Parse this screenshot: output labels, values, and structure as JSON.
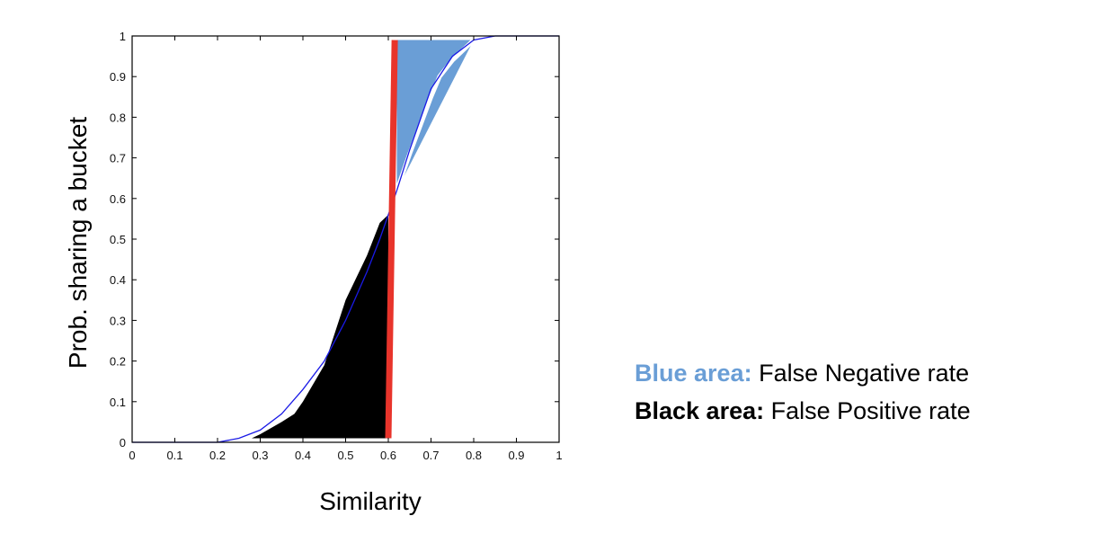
{
  "chart_data": {
    "type": "line",
    "title": "",
    "xlabel": "Similarity",
    "ylabel": "Prob. sharing a bucket",
    "xlim": [
      0,
      1
    ],
    "ylim": [
      0,
      1
    ],
    "xticks": [
      "0",
      "0.1",
      "0.2",
      "0.3",
      "0.4",
      "0.5",
      "0.6",
      "0.7",
      "0.8",
      "0.9",
      "1"
    ],
    "yticks": [
      "0",
      "0.1",
      "0.2",
      "0.3",
      "0.4",
      "0.5",
      "0.6",
      "0.7",
      "0.8",
      "0.9",
      "1"
    ],
    "grid": false,
    "series": [
      {
        "x": [
          0,
          0.1,
          0.2,
          0.25,
          0.3,
          0.35,
          0.4,
          0.45,
          0.5,
          0.55,
          0.58,
          0.6,
          0.62,
          0.65,
          0.7,
          0.75,
          0.8,
          0.85,
          0.9,
          1
        ],
        "y": [
          0,
          0.0,
          0.0,
          0.01,
          0.03,
          0.07,
          0.13,
          0.2,
          0.3,
          0.42,
          0.5,
          0.56,
          0.62,
          0.72,
          0.87,
          0.95,
          0.99,
          1.0,
          1.0,
          1.0
        ],
        "color": "#1a1ae6"
      }
    ],
    "threshold": {
      "x": [
        0.6,
        0.615
      ],
      "y": [
        0.01,
        0.99
      ],
      "color": "#e8342b"
    },
    "shaded_regions": [
      {
        "color": "#000000",
        "x": [
          0.28,
          0.3,
          0.35,
          0.38,
          0.4,
          0.45,
          0.5,
          0.55,
          0.58,
          0.6,
          0.6
        ],
        "y": [
          0.01,
          0.02,
          0.05,
          0.07,
          0.1,
          0.19,
          0.35,
          0.46,
          0.54,
          0.56,
          0.01
        ]
      },
      {
        "color": "#6a9ed6",
        "x": [
          0.62,
          0.62,
          0.65,
          0.7,
          0.75,
          0.8,
          0.62
        ],
        "y": [
          0.62,
          0.99,
          0.99,
          0.99,
          0.99,
          0.99,
          0.62
        ],
        "edge_x": [
          0.62,
          0.65,
          0.7,
          0.72,
          0.75,
          0.8
        ],
        "edge_y": [
          0.62,
          0.71,
          0.85,
          0.9,
          0.94,
          0.99
        ]
      }
    ],
    "legend": {
      "placement": "right",
      "entries": [
        {
          "key": "Blue area",
          "sep": ":",
          "text": " False Negative rate",
          "color": "#6a9ed6"
        },
        {
          "key": "Black area:",
          "sep": "",
          "text": " False Positive rate",
          "color": "#000000"
        }
      ]
    }
  }
}
